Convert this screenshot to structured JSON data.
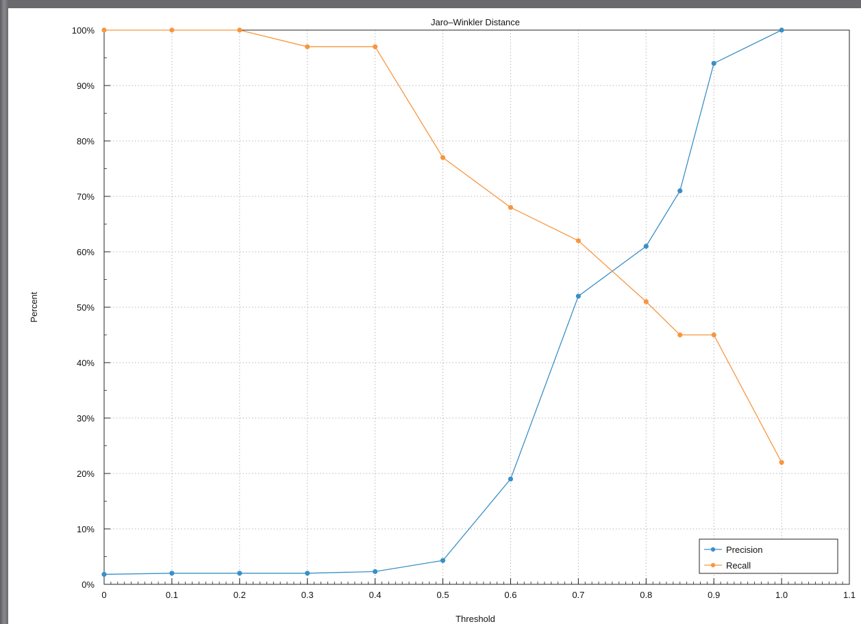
{
  "chart_data": {
    "type": "line",
    "title": "Jaro–Winkler Distance",
    "xlabel": "Threshold",
    "ylabel": "Percent",
    "xlim": [
      0,
      1.1
    ],
    "ylim": [
      0,
      100
    ],
    "x_ticks": [
      "0",
      "0.1",
      "0.2",
      "0.3",
      "0.4",
      "0.5",
      "0.6",
      "0.7",
      "0.8",
      "0.9",
      "1.0",
      "1.1"
    ],
    "y_ticks": [
      "0%",
      "10%",
      "20%",
      "30%",
      "40%",
      "50%",
      "60%",
      "70%",
      "80%",
      "90%",
      "100%"
    ],
    "grid": true,
    "legend_position": "bottom-right",
    "series": [
      {
        "name": "Precision",
        "color": "#3a8fc6",
        "x": [
          0,
          0.1,
          0.2,
          0.3,
          0.4,
          0.5,
          0.6,
          0.7,
          0.8,
          0.85,
          0.9,
          1.0
        ],
        "values": [
          1.8,
          2.0,
          2.0,
          2.0,
          2.3,
          4.3,
          19,
          52,
          61,
          71,
          94,
          100
        ]
      },
      {
        "name": "Recall",
        "color": "#f7963f",
        "x": [
          0,
          0.1,
          0.2,
          0.3,
          0.4,
          0.5,
          0.6,
          0.7,
          0.8,
          0.85,
          0.9,
          1.0
        ],
        "values": [
          100,
          100,
          100,
          97,
          97,
          77,
          68,
          62,
          51,
          45,
          45,
          22
        ]
      }
    ]
  }
}
